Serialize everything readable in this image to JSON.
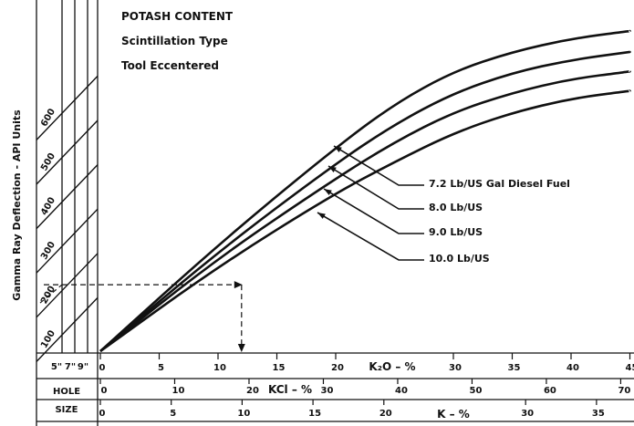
{
  "chart_data": {
    "type": "line",
    "title_lines": [
      "POTASH CONTENT",
      "Scintillation Type",
      "Tool Eccentered"
    ],
    "ylabel": "Gamma Ray Deflection - API Units",
    "x_scales": [
      {
        "name": "K2O",
        "label": "K₂O – %",
        "ticks": [
          0,
          5,
          10,
          15,
          20,
          30,
          35,
          40,
          45
        ]
      },
      {
        "name": "KCl",
        "label": "KCl – %",
        "ticks": [
          0,
          10,
          20,
          30,
          40,
          50,
          60,
          70
        ]
      },
      {
        "name": "K",
        "label": "K – %",
        "ticks": [
          0,
          5,
          10,
          15,
          20,
          30,
          35
        ]
      }
    ],
    "hole_size": {
      "label_top": "HOLE",
      "label_bottom": "SIZE",
      "ticks": [
        "5\"",
        "7\"",
        "9\""
      ]
    },
    "y_ticks": [
      100,
      200,
      300,
      400,
      500,
      600
    ],
    "x_unit": "K2O %",
    "series": [
      {
        "name": "7.2 Lb/US Gal Diesel Fuel",
        "points": [
          [
            0,
            0
          ],
          [
            10,
            240
          ],
          [
            19.5,
            449
          ],
          [
            25,
            558
          ],
          [
            30,
            631
          ],
          [
            35,
            675
          ],
          [
            40,
            705
          ],
          [
            45,
            722
          ]
        ]
      },
      {
        "name": "8.0 Lb/US",
        "points": [
          [
            0,
            0
          ],
          [
            10,
            224
          ],
          [
            19.5,
            414
          ],
          [
            25,
            512
          ],
          [
            30,
            582
          ],
          [
            35,
            628
          ],
          [
            40,
            657
          ],
          [
            45,
            675
          ]
        ]
      },
      {
        "name": "9.0 Lb/US",
        "points": [
          [
            0,
            0
          ],
          [
            10,
            210
          ],
          [
            19.5,
            381
          ],
          [
            25,
            472
          ],
          [
            30,
            539
          ],
          [
            35,
            583
          ],
          [
            40,
            614
          ],
          [
            45,
            631
          ]
        ]
      },
      {
        "name": "10.0 Lb/US",
        "points": [
          [
            0,
            0
          ],
          [
            10,
            191
          ],
          [
            19.5,
            349
          ],
          [
            25,
            427
          ],
          [
            30,
            492
          ],
          [
            35,
            538
          ],
          [
            40,
            570
          ],
          [
            45,
            587
          ]
        ]
      }
    ],
    "example": {
      "x": 12,
      "y": 150
    },
    "grid": false
  }
}
